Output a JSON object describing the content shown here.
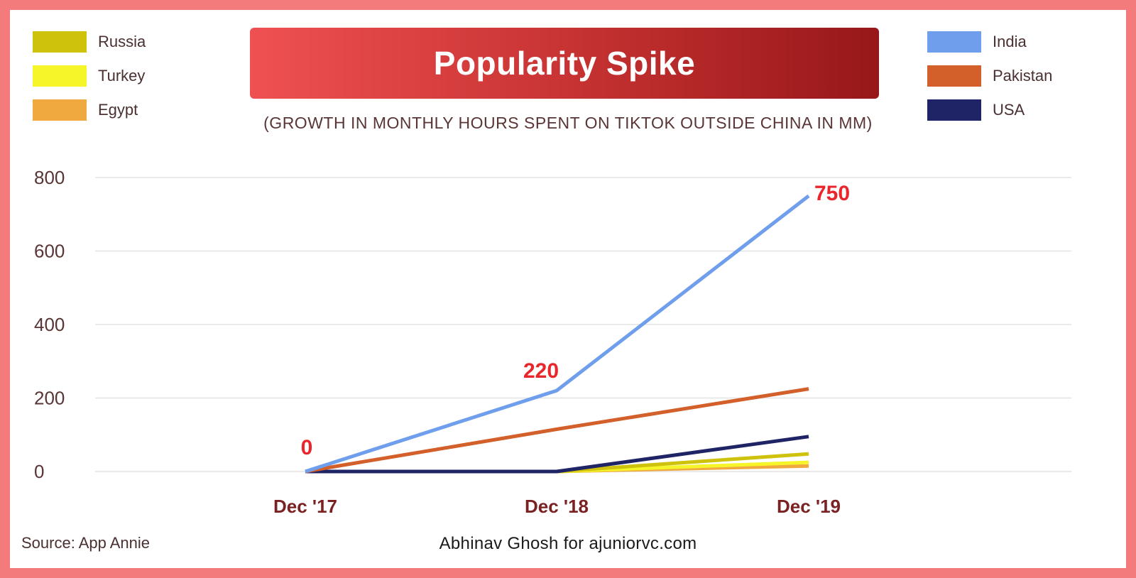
{
  "title": "Popularity Spike",
  "subtitle": "(GROWTH IN MONTHLY HOURS SPENT ON TIKTOK OUTSIDE CHINA IN MM)",
  "source": "Source: App Annie",
  "credit": "Abhinav Ghosh for ajuniorvc.com",
  "colors": {
    "frame": "#f47b7b",
    "title_gradient_start": "#ef5152",
    "title_gradient_end": "#971719",
    "annotation": "#e8262b",
    "axis_text": "#5a3535",
    "category_text": "#7a2222",
    "grid": "#e2e2e2"
  },
  "legend_left": [
    {
      "label": "Russia",
      "color": "#cfc20c"
    },
    {
      "label": "Turkey",
      "color": "#f5f52a"
    },
    {
      "label": "Egypt",
      "color": "#f0a93f"
    }
  ],
  "legend_right": [
    {
      "label": "India",
      "color": "#6f9fec"
    },
    {
      "label": "Pakistan",
      "color": "#d35f2a"
    },
    {
      "label": "USA",
      "color": "#1f2466"
    }
  ],
  "chart_data": {
    "type": "line",
    "title": "Popularity Spike",
    "subtitle": "(GROWTH IN MONTHLY HOURS SPENT ON TIKTOK OUTSIDE CHINA IN MM)",
    "categories": [
      "Dec '17",
      "Dec '18",
      "Dec '19"
    ],
    "ylim": [
      0,
      800
    ],
    "yticks": [
      0,
      200,
      400,
      600,
      800
    ],
    "grid": true,
    "legend_placement": "top-left and top-right",
    "series": [
      {
        "name": "India",
        "color": "#6f9fec",
        "values": [
          0,
          220,
          750
        ]
      },
      {
        "name": "Pakistan",
        "color": "#d35f2a",
        "values": [
          0,
          115,
          225
        ]
      },
      {
        "name": "USA",
        "color": "#1f2466",
        "values": [
          0,
          0,
          95
        ]
      },
      {
        "name": "Russia",
        "color": "#cfc20c",
        "values": [
          0,
          0,
          48
        ]
      },
      {
        "name": "Turkey",
        "color": "#f5f52a",
        "values": [
          0,
          0,
          25
        ]
      },
      {
        "name": "Egypt",
        "color": "#f0a93f",
        "values": [
          0,
          0,
          15
        ]
      }
    ],
    "annotations": [
      {
        "series": "India",
        "category": "Dec '17",
        "text": "0"
      },
      {
        "series": "India",
        "category": "Dec '18",
        "text": "220"
      },
      {
        "series": "India",
        "category": "Dec '19",
        "text": "750"
      }
    ]
  }
}
